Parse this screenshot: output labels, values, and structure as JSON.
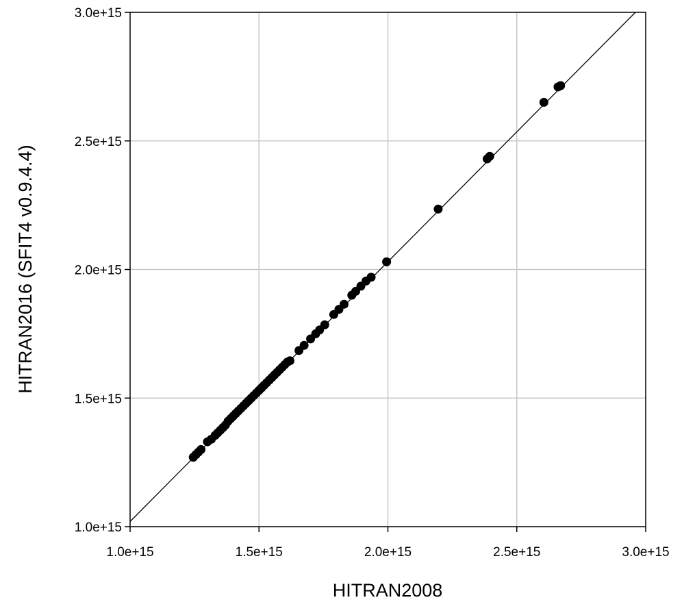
{
  "chart_data": {
    "type": "scatter",
    "xlabel": "HITRAN2008",
    "ylabel": "HITRAN2016 (SFIT4 v0.9.4.4)",
    "xlim": [
      1000000000000000.0,
      3000000000000000.0
    ],
    "ylim": [
      1000000000000000.0,
      3000000000000000.0
    ],
    "xticks": [
      1000000000000000.0,
      1500000000000000.0,
      2000000000000000.0,
      2500000000000000.0,
      3000000000000000.0
    ],
    "yticks": [
      1000000000000000.0,
      1500000000000000.0,
      2000000000000000.0,
      2500000000000000.0,
      3000000000000000.0
    ],
    "xtick_labels": [
      "1.0e+15",
      "1.5e+15",
      "2.0e+15",
      "2.5e+15",
      "3.0e+15"
    ],
    "ytick_labels": [
      "1.0e+15",
      "1.5e+15",
      "2.0e+15",
      "2.5e+15",
      "3.0e+15"
    ],
    "grid": true,
    "reference_line": {
      "x": [
        1000000000000000.0,
        2960000000000000.0
      ],
      "y": [
        1020000000000000.0,
        3000000000000000.0
      ]
    },
    "marker_color": "#000000",
    "series": [
      {
        "x": [
          1245000000000000.0,
          1255000000000000.0,
          1265000000000000.0,
          1275000000000000.0,
          1300000000000000.0,
          1315000000000000.0,
          1330000000000000.0,
          1340000000000000.0,
          1350000000000000.0,
          1360000000000000.0,
          1370000000000000.0,
          1380000000000000.0,
          1390000000000000.0,
          1400000000000000.0,
          1410000000000000.0,
          1420000000000000.0,
          1430000000000000.0,
          1440000000000000.0,
          1450000000000000.0,
          1460000000000000.0,
          1470000000000000.0,
          1480000000000000.0,
          1490000000000000.0,
          1500000000000000.0,
          1510000000000000.0,
          1520000000000000.0,
          1530000000000000.0,
          1540000000000000.0,
          1550000000000000.0,
          1560000000000000.0,
          1570000000000000.0,
          1580000000000000.0,
          1590000000000000.0,
          1600000000000000.0,
          1610000000000000.0,
          1620000000000000.0,
          1655000000000000.0,
          1675000000000000.0,
          1700000000000000.0,
          1720000000000000.0,
          1735000000000000.0,
          1755000000000000.0,
          1790000000000000.0,
          1810000000000000.0,
          1830000000000000.0,
          1860000000000000.0,
          1875000000000000.0,
          1895000000000000.0,
          1915000000000000.0,
          1935000000000000.0,
          1995000000000000.0,
          2195000000000000.0,
          2385000000000000.0,
          2395000000000000.0,
          2605000000000000.0,
          2660000000000000.0,
          2670000000000000.0
        ],
        "y": [
          1270000000000000.0,
          1280000000000000.0,
          1290000000000000.0,
          1300000000000000.0,
          1330000000000000.0,
          1340000000000000.0,
          1355000000000000.0,
          1365000000000000.0,
          1375000000000000.0,
          1385000000000000.0,
          1395000000000000.0,
          1410000000000000.0,
          1420000000000000.0,
          1430000000000000.0,
          1440000000000000.0,
          1450000000000000.0,
          1460000000000000.0,
          1470000000000000.0,
          1480000000000000.0,
          1490000000000000.0,
          1500000000000000.0,
          1510000000000000.0,
          1520000000000000.0,
          1530000000000000.0,
          1540000000000000.0,
          1550000000000000.0,
          1560000000000000.0,
          1570000000000000.0,
          1580000000000000.0,
          1590000000000000.0,
          1600000000000000.0,
          1610000000000000.0,
          1620000000000000.0,
          1630000000000000.0,
          1640000000000000.0,
          1645000000000000.0,
          1685000000000000.0,
          1705000000000000.0,
          1730000000000000.0,
          1750000000000000.0,
          1765000000000000.0,
          1785000000000000.0,
          1825000000000000.0,
          1845000000000000.0,
          1865000000000000.0,
          1900000000000000.0,
          1915000000000000.0,
          1935000000000000.0,
          1955000000000000.0,
          1970000000000000.0,
          2030000000000000.0,
          2235000000000000.0,
          2430000000000000.0,
          2440000000000000.0,
          2650000000000000.0,
          2710000000000000.0,
          2715000000000000.0
        ]
      }
    ]
  }
}
